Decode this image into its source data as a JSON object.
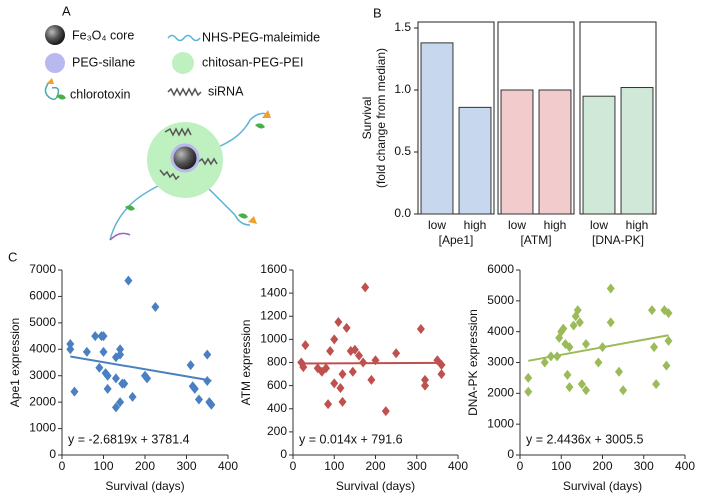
{
  "panel_labels": [
    "A",
    "B",
    "C"
  ],
  "diagram": {
    "legend": [
      "Fe₃O₄ core",
      "NHS-PEG-maleimide",
      "PEG-silane",
      "chitosan-PEG-PEI",
      "chlorotoxin",
      "siRNA"
    ]
  },
  "chart_data": [
    {
      "type": "bar",
      "ylabel": [
        "Survival",
        "(fold change from median)"
      ],
      "xlabel": "[Ape1]",
      "categories": [
        "low",
        "high"
      ],
      "values": [
        1.38,
        0.86
      ],
      "color": "#c7d8ee",
      "ylim": [
        0,
        1.5
      ],
      "yticks": [
        {
          "value": 0,
          "label": "0.0"
        },
        0.5,
        {
          "value": 1,
          "label": "1.0"
        },
        1.5
      ]
    },
    {
      "type": "bar",
      "xlabel": "[ATM]",
      "categories": [
        "low",
        "high"
      ],
      "values": [
        1.0,
        1.0
      ],
      "color": "#f2cccc",
      "ylim": [
        0,
        1.5
      ]
    },
    {
      "type": "bar",
      "xlabel": "[DNA-PK]",
      "categories": [
        "low",
        "high"
      ],
      "values": [
        0.95,
        1.02
      ],
      "color": "#d0e8d8",
      "ylim": [
        0,
        1.5
      ]
    },
    {
      "type": "scatter",
      "xlabel": "Survival (days)",
      "ylabel": "Ape1 expression",
      "color": "#4a7fc1",
      "x": [
        20,
        20,
        30,
        60,
        80,
        90,
        95,
        100,
        100,
        105,
        110,
        110,
        130,
        130,
        140,
        140,
        130,
        140,
        145,
        150,
        160,
        170,
        200,
        205,
        225,
        310,
        315,
        320,
        330,
        350,
        355,
        360,
        350
      ],
      "values": [
        4200,
        4000,
        2400,
        3900,
        4500,
        3300,
        4500,
        4500,
        3900,
        3100,
        3000,
        2500,
        2900,
        3700,
        4000,
        3800,
        1800,
        2000,
        2700,
        2700,
        6600,
        2200,
        3000,
        2900,
        5600,
        3400,
        2600,
        2500,
        2100,
        3800,
        2000,
        1900,
        2800
      ],
      "xlim": [
        0,
        400
      ],
      "xticks": [
        0,
        100,
        200,
        300,
        400
      ],
      "ylim": [
        0,
        7000
      ],
      "yticks": [
        0,
        1000,
        2000,
        3000,
        4000,
        5000,
        6000,
        7000
      ],
      "fit": {
        "slope": -2.6819,
        "intercept": 3781.4,
        "label": "y = -2.6819x + 3781.4"
      }
    },
    {
      "type": "scatter",
      "xlabel": "Survival (days)",
      "ylabel": "ATM expression",
      "color": "#c0504d",
      "x": [
        20,
        25,
        30,
        60,
        70,
        80,
        85,
        90,
        100,
        100,
        110,
        115,
        120,
        120,
        130,
        140,
        145,
        150,
        160,
        170,
        175,
        190,
        200,
        225,
        250,
        310,
        320,
        320,
        350,
        360,
        360
      ],
      "values": [
        800,
        760,
        950,
        750,
        720,
        750,
        440,
        900,
        1000,
        620,
        1150,
        580,
        460,
        700,
        1100,
        900,
        720,
        910,
        860,
        800,
        1450,
        650,
        820,
        380,
        880,
        1090,
        650,
        600,
        820,
        780,
        700
      ],
      "xlim": [
        0,
        400
      ],
      "xticks": [
        0,
        100,
        200,
        300,
        400
      ],
      "ylim": [
        0,
        1600
      ],
      "yticks": [
        0,
        200,
        400,
        600,
        800,
        1000,
        1200,
        1400,
        1600
      ],
      "fit": {
        "slope": 0.014,
        "intercept": 791.6,
        "label": "y = 0.014x + 791.6"
      }
    },
    {
      "type": "scatter",
      "xlabel": "Survival (days)",
      "ylabel": "DNA-PK expression",
      "color": "#9bbb59",
      "x": [
        20,
        20,
        60,
        75,
        90,
        95,
        100,
        105,
        110,
        115,
        120,
        120,
        130,
        135,
        140,
        145,
        150,
        160,
        160,
        190,
        200,
        220,
        220,
        240,
        250,
        320,
        325,
        330,
        350,
        360,
        360,
        355
      ],
      "values": [
        2500,
        2050,
        3000,
        3200,
        3200,
        3800,
        4000,
        4100,
        3600,
        2600,
        3500,
        2200,
        4200,
        4500,
        4700,
        4300,
        2300,
        3600,
        2100,
        3000,
        3500,
        5400,
        4300,
        2700,
        2100,
        4700,
        3500,
        2300,
        4700,
        4600,
        3700,
        2900
      ],
      "xlim": [
        0,
        400
      ],
      "xticks": [
        0,
        100,
        200,
        300,
        400
      ],
      "ylim": [
        0,
        6000
      ],
      "yticks": [
        0,
        1000,
        2000,
        3000,
        4000,
        5000,
        6000
      ],
      "fit": {
        "slope": 2.4436,
        "intercept": 3005.5,
        "label": "y = 2.4436x + 3005.5"
      }
    }
  ]
}
